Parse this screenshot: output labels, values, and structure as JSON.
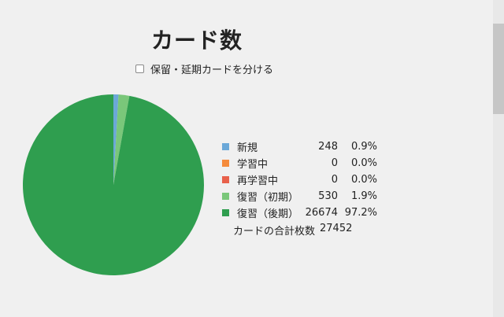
{
  "title": "カード数",
  "separate_checkbox": {
    "label": "保留・延期カードを分ける",
    "checked": false
  },
  "chart_data": {
    "type": "pie",
    "title": "カード数",
    "slices": [
      {
        "label": "新規",
        "count": 248,
        "percent": "0.9%",
        "color": "#6ba8d8"
      },
      {
        "label": "学習中",
        "count": 0,
        "percent": "0.0%",
        "color": "#f58b3c"
      },
      {
        "label": "再学習中",
        "count": 0,
        "percent": "0.0%",
        "color": "#e8614b"
      },
      {
        "label": "復習（初期）",
        "count": 530,
        "percent": "1.9%",
        "color": "#7ac77a"
      },
      {
        "label": "復習（後期）",
        "count": 26674,
        "percent": "97.2%",
        "color": "#2f9e4f"
      }
    ],
    "total_label": "カードの合計枚数",
    "total": 27452
  }
}
